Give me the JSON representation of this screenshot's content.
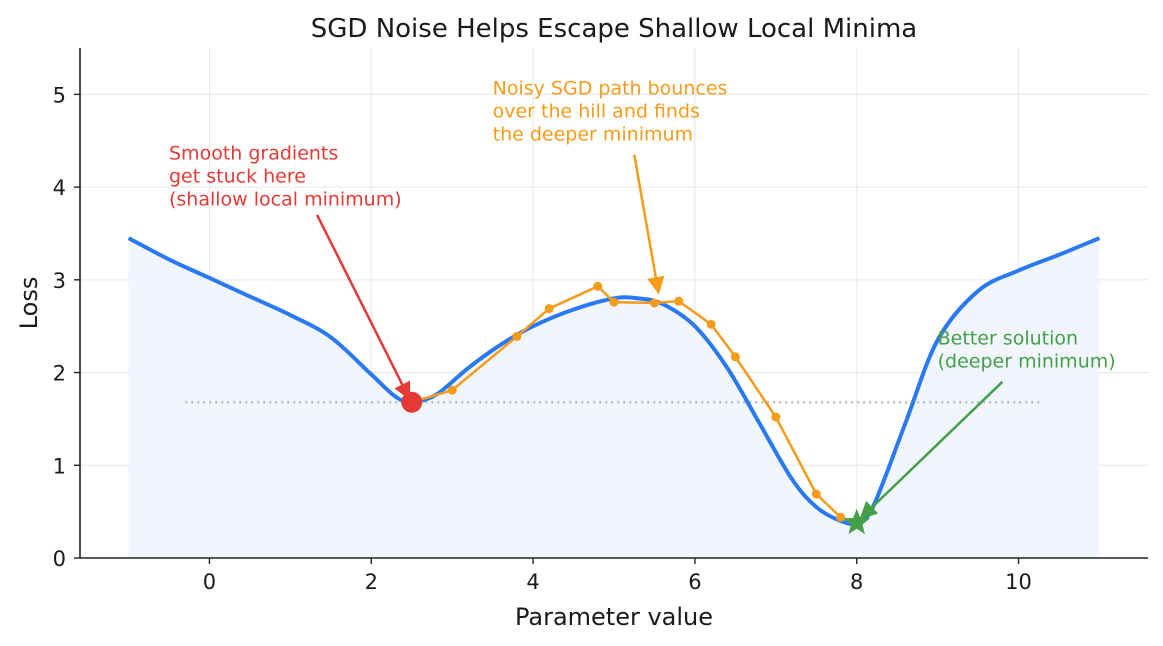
{
  "chart_data": {
    "type": "line",
    "title": "SGD Noise Helps Escape Shallow Local Minima",
    "xlabel": "Parameter value",
    "ylabel": "Loss",
    "xlim": [
      -1.6,
      11.6
    ],
    "ylim": [
      0,
      5.5
    ],
    "x_ticks": [
      0,
      2,
      4,
      6,
      8,
      10
    ],
    "y_ticks": [
      0,
      1,
      2,
      3,
      4,
      5
    ],
    "grid": true,
    "colors": {
      "loss_curve": "#2979f2",
      "fill": "#eef3fd",
      "sgd_path": "#f59b1a",
      "local_min": "#e53935",
      "global_min": "#43a047",
      "reference_line": "#bdbdbd"
    },
    "loss_curve": {
      "x": [
        -1.0,
        -0.5,
        0.0,
        0.5,
        1.0,
        1.5,
        2.0,
        2.3,
        2.5,
        2.8,
        3.2,
        3.6,
        4.0,
        4.5,
        5.0,
        5.3,
        5.6,
        6.0,
        6.4,
        6.8,
        7.2,
        7.5,
        7.8,
        8.0,
        8.2,
        8.6,
        9.0,
        9.5,
        10.0,
        10.5,
        11.0
      ],
      "y": [
        3.45,
        3.22,
        3.02,
        2.82,
        2.62,
        2.38,
        1.98,
        1.74,
        1.68,
        1.76,
        2.05,
        2.3,
        2.5,
        2.68,
        2.8,
        2.8,
        2.74,
        2.5,
        2.05,
        1.45,
        0.85,
        0.55,
        0.4,
        0.38,
        0.55,
        1.45,
        2.35,
        2.88,
        3.1,
        3.27,
        3.45
      ]
    },
    "sgd_path": {
      "x": [
        2.5,
        3.0,
        3.8,
        4.2,
        4.8,
        5.0,
        5.5,
        5.8,
        6.2,
        6.5,
        7.0,
        7.5,
        7.8,
        8.0
      ],
      "y": [
        1.68,
        1.81,
        2.39,
        2.69,
        2.93,
        2.76,
        2.75,
        2.77,
        2.52,
        2.17,
        1.52,
        0.69,
        0.44,
        0.38
      ]
    },
    "reference_line": {
      "y": 1.68,
      "x_range": [
        -0.3,
        10.3
      ]
    },
    "local_minimum": {
      "x": 2.5,
      "y": 1.68
    },
    "global_minimum": {
      "x": 8.0,
      "y": 0.38
    },
    "annotations": [
      {
        "id": "local",
        "lines": [
          "Smooth gradients",
          "get stuck here",
          "(shallow local minimum)"
        ],
        "text_x": -0.5,
        "text_y": 4.3,
        "arrow_from": [
          1.33,
          3.7
        ],
        "arrow_to": [
          2.47,
          1.72
        ],
        "color": "#e53935"
      },
      {
        "id": "sgd",
        "lines": [
          "Noisy SGD path bounces",
          "over the hill and finds",
          "the deeper minimum"
        ],
        "text_x": 3.5,
        "text_y": 5.0,
        "arrow_from": [
          5.25,
          4.35
        ],
        "arrow_to": [
          5.55,
          2.86
        ],
        "color": "#f59b1a"
      },
      {
        "id": "global",
        "lines": [
          "Better solution",
          "(deeper minimum)"
        ],
        "text_x": 9.0,
        "text_y": 2.3,
        "arrow_from": [
          9.8,
          1.9
        ],
        "arrow_to": [
          8.05,
          0.43
        ],
        "color": "#43a047"
      }
    ]
  }
}
